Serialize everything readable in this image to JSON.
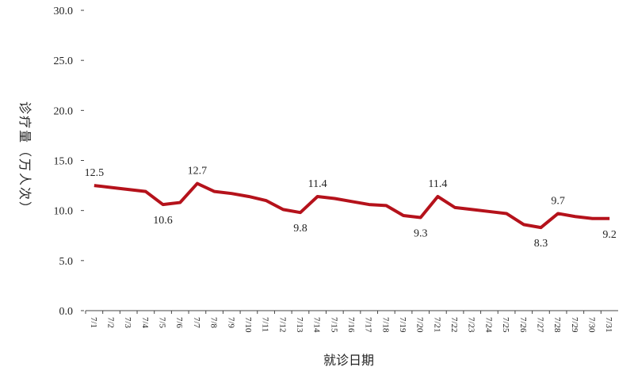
{
  "chart_data": {
    "type": "line",
    "y_label": "诊疗量（万人次）",
    "x_label": "就诊日期",
    "categories": [
      "7/1",
      "7/2",
      "7/3",
      "7/4",
      "7/5",
      "7/6",
      "7/7",
      "7/8",
      "7/9",
      "7/10",
      "7/11",
      "7/12",
      "7/13",
      "7/14",
      "7/15",
      "7/16",
      "7/17",
      "7/18",
      "7/19",
      "7/20",
      "7/21",
      "7/22",
      "7/23",
      "7/24",
      "7/25",
      "7/26",
      "7/27",
      "7/28",
      "7/29",
      "7/30",
      "7/31"
    ],
    "series": [
      {
        "name": "诊疗量",
        "color": "#b5121b",
        "values": [
          12.5,
          12.3,
          12.1,
          11.9,
          10.6,
          10.8,
          12.7,
          11.9,
          11.7,
          11.4,
          11.0,
          10.1,
          9.8,
          11.4,
          11.2,
          10.9,
          10.6,
          10.5,
          9.5,
          9.3,
          11.4,
          10.3,
          10.1,
          9.9,
          9.7,
          8.6,
          8.3,
          9.7,
          9.4,
          9.2,
          9.2
        ],
        "value_labels": [
          "12.5",
          null,
          null,
          null,
          "10.6",
          null,
          "12.7",
          null,
          null,
          null,
          null,
          null,
          "9.8",
          "11.4",
          null,
          null,
          null,
          null,
          null,
          "9.3",
          "11.4",
          null,
          null,
          null,
          null,
          null,
          "8.3",
          "9.7",
          null,
          null,
          "9.2"
        ]
      }
    ],
    "ylim": [
      0,
      30
    ],
    "yticks": [
      {
        "value": 0,
        "label": "0.0"
      },
      {
        "value": 5,
        "label": "5.0"
      },
      {
        "value": 10,
        "label": "10.0"
      },
      {
        "value": 15,
        "label": "15.0"
      },
      {
        "value": 20,
        "label": "20.0"
      },
      {
        "value": 25,
        "label": "25.0"
      },
      {
        "value": 30,
        "label": "30.0"
      }
    ]
  }
}
